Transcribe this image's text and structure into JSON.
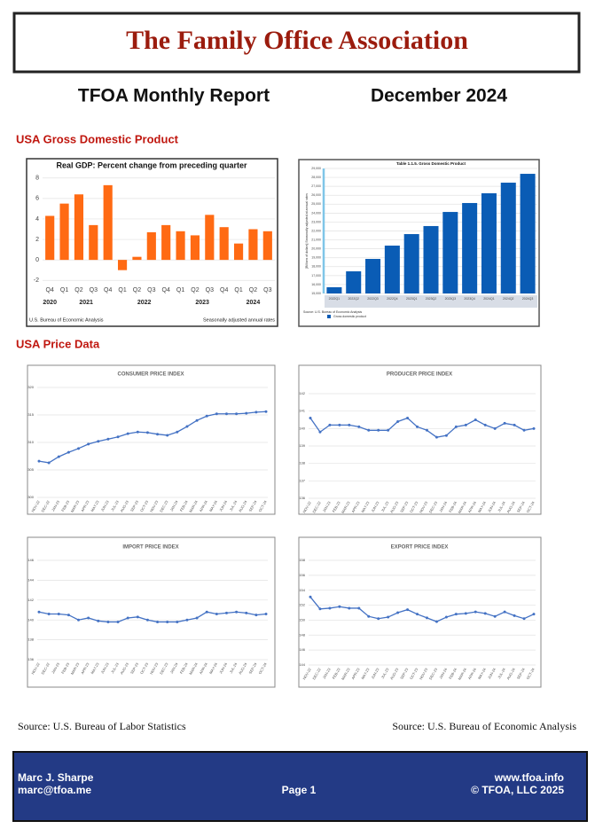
{
  "header": {
    "title": "The Family Office Association",
    "report": "TFOA Monthly Report",
    "date": "December 2024"
  },
  "sections": [
    "USA Gross Domestic Product",
    "USA Price Data"
  ],
  "sources": [
    "Source: U.S. Bureau of Labor Statistics",
    "Source: U.S. Bureau of Economic Analysis"
  ],
  "footer": {
    "name": "Marc J. Sharpe",
    "email": "marc@tfoa.me",
    "page": "Page 1",
    "website": "www.tfoa.info",
    "copyright": "© TFOA, LLC 2025"
  },
  "chart_data": [
    {
      "type": "bar",
      "title": "Real GDP:  Percent change from preceding quarter",
      "categories": [
        "Q4",
        "Q1",
        "Q2",
        "Q3",
        "Q4",
        "Q1",
        "Q2",
        "Q3",
        "Q4",
        "Q1",
        "Q2",
        "Q3",
        "Q4",
        "Q1",
        "Q2",
        "Q3"
      ],
      "year_labels": [
        "2020",
        "2021",
        "2022",
        "2023",
        "2024"
      ],
      "values": [
        4.3,
        5.5,
        6.4,
        3.4,
        7.3,
        -1.0,
        0.3,
        2.7,
        3.4,
        2.8,
        2.4,
        4.4,
        3.2,
        1.6,
        3.0,
        2.8
      ],
      "color": "#ff6a13",
      "ylim": [
        -2.5,
        8.5
      ],
      "yticks": [
        -2,
        0,
        2,
        4,
        6,
        8
      ],
      "grid": true,
      "notes": [
        "U.S. Bureau of Economic Analysis",
        "Seasonally adjusted annual rates"
      ]
    },
    {
      "type": "bar",
      "title": "Table 1.1.5. Gross Domestic Product",
      "y_label": "[Billions of dollars] Seasonally adjusted at annual rates",
      "categories": [
        "2022Q1",
        "2022Q2",
        "2022Q3",
        "2022Q4",
        "2023Q1",
        "2023Q2",
        "2023Q3",
        "2023Q4",
        "2024Q1",
        "2024Q2",
        "2024Q3"
      ],
      "values": [
        15700,
        17480,
        18870,
        20360,
        21650,
        22550,
        24130,
        25130,
        26220,
        27410,
        28400
      ],
      "color": "#0a5cb5",
      "ylim": [
        15000,
        29000
      ],
      "yticks": [
        {
          "value": 15000,
          "label": "15,000"
        },
        {
          "value": 16000,
          "label": "16,000"
        },
        {
          "value": 17000,
          "label": "17,000"
        },
        {
          "value": 18000,
          "label": "18,000"
        },
        {
          "value": 19000,
          "label": "19,000"
        },
        {
          "value": 20000,
          "label": "20,000"
        },
        {
          "value": 21000,
          "label": "21,000"
        },
        {
          "value": 22000,
          "label": "22,000"
        },
        {
          "value": 23000,
          "label": "23,000"
        },
        {
          "value": 24000,
          "label": "24,000"
        },
        {
          "value": 25000,
          "label": "25,000"
        },
        {
          "value": 26000,
          "label": "26,000"
        },
        {
          "value": 27000,
          "label": "27,000"
        },
        {
          "value": 28000,
          "label": "28,000"
        },
        {
          "value": 29000,
          "label": "29,000"
        }
      ],
      "grid": true,
      "legend": "Gross domestic product",
      "notes": [
        "Source: U.S. Bureau of Economic Analysis"
      ]
    },
    {
      "type": "line",
      "title": "CONSUMER PRICE INDEX",
      "categories": [
        "NOV-22",
        "DEC-22",
        "JAN-23",
        "FEB-23",
        "MAR-23",
        "APR-23",
        "MAY-23",
        "JUN-23",
        "JUL-23",
        "AUG-23",
        "SEP-23",
        "OCT-23",
        "NOV-23",
        "DEC-23",
        "JAN-24",
        "FEB-24",
        "MAR-24",
        "APR-24",
        "MAY-24",
        "JUN-24",
        "JUL-24",
        "AUG-24",
        "SEP-24",
        "OCT-24"
      ],
      "values": [
        306.6,
        306.3,
        307.4,
        308.2,
        308.9,
        309.7,
        310.2,
        310.6,
        311.0,
        311.6,
        311.9,
        311.8,
        311.5,
        311.3,
        311.9,
        312.9,
        314.0,
        314.8,
        315.2,
        315.2,
        315.2,
        315.3,
        315.5,
        315.6
      ],
      "color": "#4472c4",
      "ylim": [
        300,
        320
      ],
      "yticks": [
        300,
        305,
        310,
        315,
        320
      ],
      "grid": true
    },
    {
      "type": "line",
      "title": "PRODUCER PRICE INDEX",
      "categories": [
        "NOV-22",
        "DEC-22",
        "JAN-23",
        "FEB-23",
        "MAR-23",
        "APR-23",
        "MAY-23",
        "JUN-23",
        "JUL-23",
        "AUG-23",
        "SEP-23",
        "OCT-23",
        "NOV-23",
        "DEC-23",
        "JAN-24",
        "FEB-24",
        "MAR-24",
        "APR-24",
        "MAY-24",
        "JUN-24",
        "JUL-24",
        "AUG-24",
        "SEP-24",
        "OCT-24"
      ],
      "values": [
        140.6,
        139.8,
        140.2,
        140.2,
        140.2,
        140.1,
        139.9,
        139.9,
        139.9,
        140.4,
        140.6,
        140.1,
        139.9,
        139.5,
        139.6,
        140.1,
        140.2,
        140.5,
        140.2,
        140.0,
        140.3,
        140.2,
        139.9,
        140.0
      ],
      "color": "#4472c4",
      "ylim": [
        136,
        142
      ],
      "yticks": [
        136,
        137,
        138,
        139,
        140,
        141,
        142
      ],
      "grid": true
    },
    {
      "type": "line",
      "title": "IMPORT PRICE INDEX",
      "categories": [
        "NOV-22",
        "DEC-22",
        "JAN-23",
        "FEB-23",
        "MAR-23",
        "APR-23",
        "MAY-23",
        "JUN-23",
        "JUL-23",
        "AUG-23",
        "SEP-23",
        "OCT-23",
        "NOV-23",
        "DEC-23",
        "JAN-24",
        "FEB-24",
        "MAR-24",
        "APR-24",
        "MAY-24",
        "JUN-24",
        "JUL-24",
        "AUG-24",
        "SEP-24",
        "OCT-24"
      ],
      "values": [
        140.8,
        140.6,
        140.6,
        140.5,
        140.0,
        140.2,
        139.9,
        139.8,
        139.8,
        140.2,
        140.3,
        140.0,
        139.8,
        139.8,
        139.8,
        140.0,
        140.2,
        140.8,
        140.6,
        140.7,
        140.8,
        140.7,
        140.5,
        140.6
      ],
      "color": "#4472c4",
      "ylim": [
        136,
        146
      ],
      "yticks": [
        136,
        138,
        140,
        142,
        144,
        146
      ],
      "grid": true
    },
    {
      "type": "line",
      "title": "EXPORT PRICE INDEX",
      "categories": [
        "NOV-22",
        "DEC-22",
        "JAN-23",
        "FEB-23",
        "MAR-23",
        "APR-23",
        "MAY-23",
        "JUN-23",
        "JUL-23",
        "AUG-23",
        "SEP-23",
        "OCT-23",
        "NOV-23",
        "DEC-23",
        "JAN-24",
        "FEB-24",
        "MAR-24",
        "APR-24",
        "MAY-24",
        "JUN-24",
        "JUL-24",
        "AUG-24",
        "SEP-24",
        "OCT-24"
      ],
      "values": [
        153.1,
        151.5,
        151.6,
        151.8,
        151.6,
        151.6,
        150.5,
        150.2,
        150.4,
        151.0,
        151.4,
        150.8,
        150.3,
        149.8,
        150.4,
        150.8,
        150.9,
        151.1,
        150.9,
        150.5,
        151.1,
        150.6,
        150.2,
        150.8
      ],
      "color": "#4472c4",
      "ylim": [
        144,
        158
      ],
      "yticks": [
        144,
        146,
        148,
        150,
        152,
        154,
        156,
        158
      ],
      "grid": true
    }
  ]
}
